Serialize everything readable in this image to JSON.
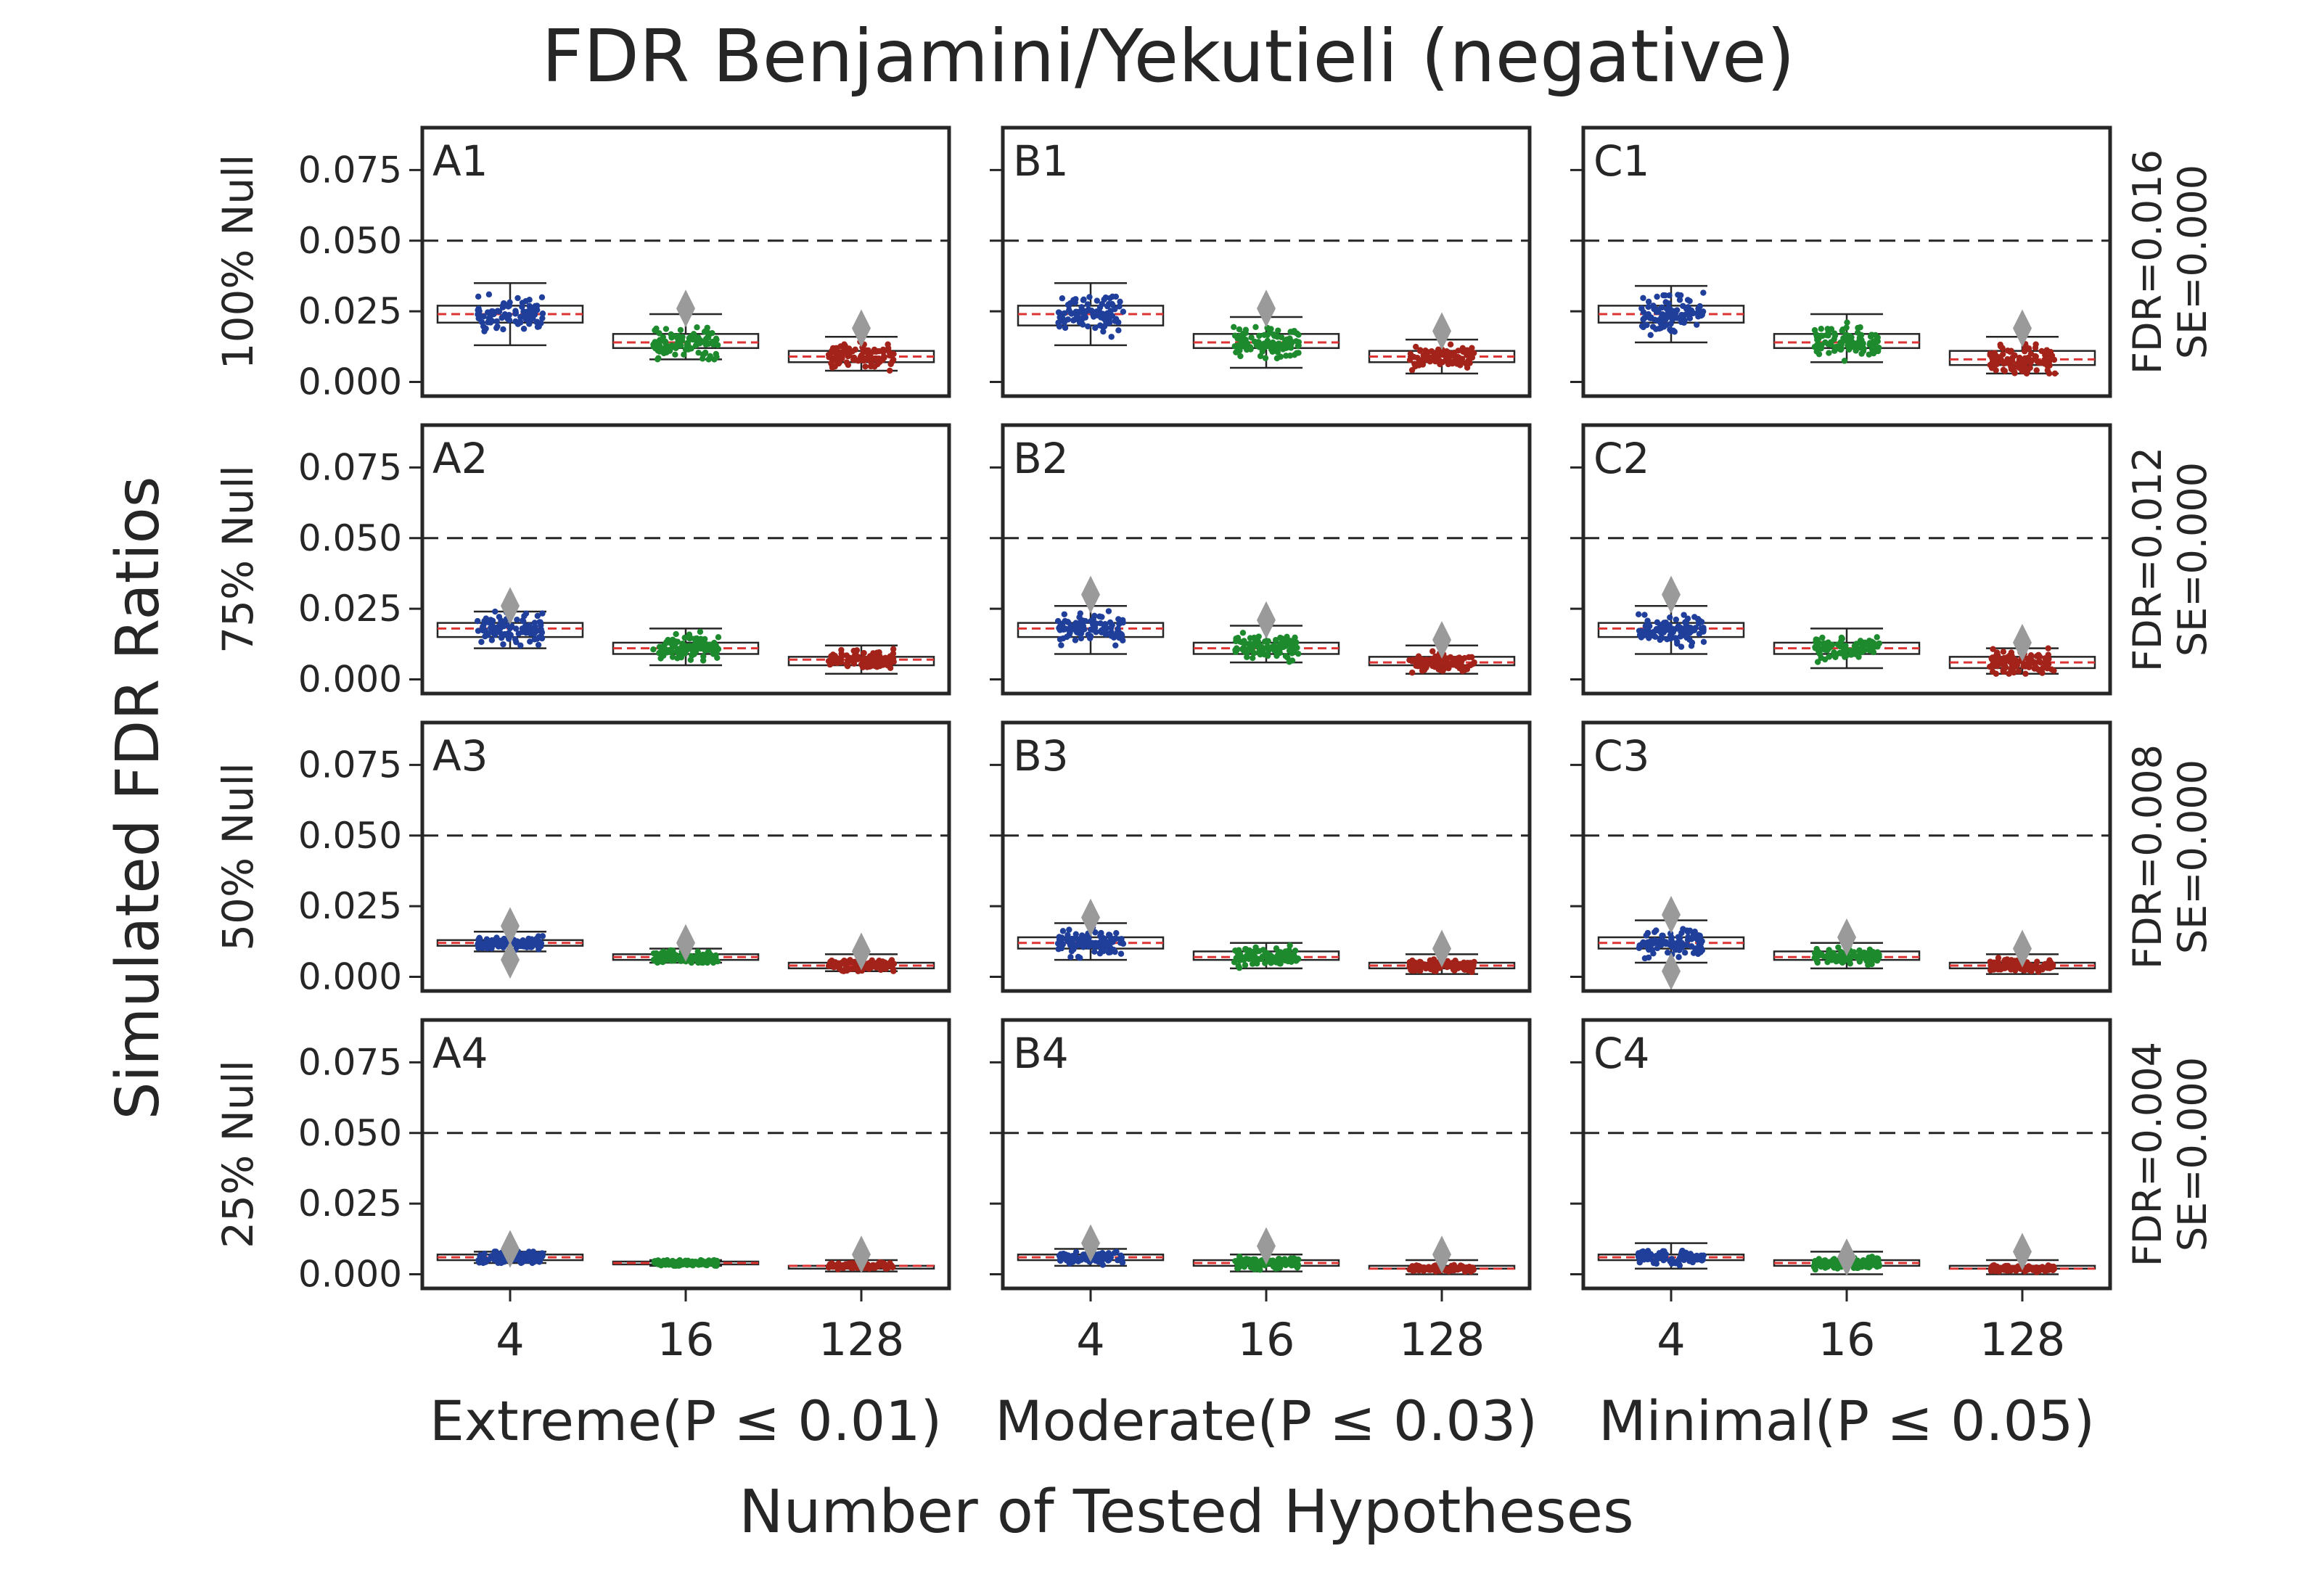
{
  "chart_data": {
    "type": "box",
    "title": "FDR Benjamini/Yekutieli (negative)",
    "ylabel": "Simulated FDR Ratios",
    "xlabel": "Number of Tested Hypotheses",
    "ylim": [
      -0.005,
      0.09
    ],
    "yticks": [
      "0.000",
      "0.025",
      "0.050",
      "0.075"
    ],
    "threshold": 0.05,
    "categories": [
      "4",
      "16",
      "128"
    ],
    "columns": [
      "Extreme(P ≤ 0.01)",
      "Moderate(P ≤ 0.03)",
      "Minimal(P ≤ 0.05)"
    ],
    "rows": [
      "100% Null",
      "75% Null",
      "50% Null",
      "25% Null"
    ],
    "row_stats": [
      {
        "fdr": "FDR=0.016",
        "se": "SE=0.000"
      },
      {
        "fdr": "FDR=0.012",
        "se": "SE=0.000"
      },
      {
        "fdr": "FDR=0.008",
        "se": "SE=0.000"
      },
      {
        "fdr": "FDR=0.004",
        "se": "SE=0.000"
      }
    ],
    "series_colors": [
      "#1f3f9b",
      "#1e8a2e",
      "#a3231a"
    ],
    "panels": [
      {
        "label": "A1",
        "boxes": [
          {
            "min": 0.013,
            "q1": 0.021,
            "median": 0.024,
            "q3": 0.027,
            "max": 0.035,
            "outliers": []
          },
          {
            "min": 0.008,
            "q1": 0.012,
            "median": 0.014,
            "q3": 0.017,
            "max": 0.024,
            "outliers": [
              0.026
            ]
          },
          {
            "min": 0.004,
            "q1": 0.007,
            "median": 0.009,
            "q3": 0.011,
            "max": 0.016,
            "outliers": [
              0.019
            ]
          }
        ]
      },
      {
        "label": "B1",
        "boxes": [
          {
            "min": 0.013,
            "q1": 0.02,
            "median": 0.024,
            "q3": 0.027,
            "max": 0.035,
            "outliers": []
          },
          {
            "min": 0.005,
            "q1": 0.012,
            "median": 0.014,
            "q3": 0.017,
            "max": 0.023,
            "outliers": [
              0.026
            ]
          },
          {
            "min": 0.003,
            "q1": 0.007,
            "median": 0.009,
            "q3": 0.011,
            "max": 0.015,
            "outliers": [
              0.018
            ]
          }
        ]
      },
      {
        "label": "C1",
        "boxes": [
          {
            "min": 0.014,
            "q1": 0.021,
            "median": 0.024,
            "q3": 0.027,
            "max": 0.034,
            "outliers": []
          },
          {
            "min": 0.007,
            "q1": 0.012,
            "median": 0.014,
            "q3": 0.017,
            "max": 0.024,
            "outliers": []
          },
          {
            "min": 0.003,
            "q1": 0.006,
            "median": 0.008,
            "q3": 0.011,
            "max": 0.016,
            "outliers": [
              0.019
            ]
          }
        ]
      },
      {
        "label": "A2",
        "boxes": [
          {
            "min": 0.011,
            "q1": 0.015,
            "median": 0.018,
            "q3": 0.02,
            "max": 0.024,
            "outliers": [
              0.026
            ]
          },
          {
            "min": 0.005,
            "q1": 0.009,
            "median": 0.011,
            "q3": 0.013,
            "max": 0.018,
            "outliers": []
          },
          {
            "min": 0.002,
            "q1": 0.005,
            "median": 0.007,
            "q3": 0.008,
            "max": 0.012,
            "outliers": []
          }
        ]
      },
      {
        "label": "B2",
        "boxes": [
          {
            "min": 0.009,
            "q1": 0.015,
            "median": 0.018,
            "q3": 0.02,
            "max": 0.026,
            "outliers": [
              0.03
            ]
          },
          {
            "min": 0.006,
            "q1": 0.009,
            "median": 0.011,
            "q3": 0.013,
            "max": 0.019,
            "outliers": [
              0.021
            ]
          },
          {
            "min": 0.002,
            "q1": 0.005,
            "median": 0.006,
            "q3": 0.008,
            "max": 0.012,
            "outliers": [
              0.014
            ]
          }
        ]
      },
      {
        "label": "C2",
        "boxes": [
          {
            "min": 0.009,
            "q1": 0.015,
            "median": 0.018,
            "q3": 0.02,
            "max": 0.026,
            "outliers": [
              0.03
            ]
          },
          {
            "min": 0.004,
            "q1": 0.009,
            "median": 0.011,
            "q3": 0.013,
            "max": 0.018,
            "outliers": []
          },
          {
            "min": 0.002,
            "q1": 0.004,
            "median": 0.006,
            "q3": 0.008,
            "max": 0.011,
            "outliers": [
              0.013
            ]
          }
        ]
      },
      {
        "label": "A3",
        "boxes": [
          {
            "min": 0.009,
            "q1": 0.011,
            "median": 0.012,
            "q3": 0.013,
            "max": 0.016,
            "outliers": [
              0.018,
              0.006
            ]
          },
          {
            "min": 0.005,
            "q1": 0.006,
            "median": 0.007,
            "q3": 0.008,
            "max": 0.01,
            "outliers": [
              0.012
            ]
          },
          {
            "min": 0.002,
            "q1": 0.003,
            "median": 0.004,
            "q3": 0.005,
            "max": 0.008,
            "outliers": [
              0.009
            ]
          }
        ]
      },
      {
        "label": "B3",
        "boxes": [
          {
            "min": 0.006,
            "q1": 0.01,
            "median": 0.012,
            "q3": 0.014,
            "max": 0.019,
            "outliers": [
              0.021
            ]
          },
          {
            "min": 0.003,
            "q1": 0.006,
            "median": 0.007,
            "q3": 0.009,
            "max": 0.012,
            "outliers": []
          },
          {
            "min": 0.001,
            "q1": 0.003,
            "median": 0.004,
            "q3": 0.005,
            "max": 0.008,
            "outliers": [
              0.01
            ]
          }
        ]
      },
      {
        "label": "C3",
        "boxes": [
          {
            "min": 0.005,
            "q1": 0.01,
            "median": 0.012,
            "q3": 0.014,
            "max": 0.02,
            "outliers": [
              0.022,
              0.002
            ]
          },
          {
            "min": 0.003,
            "q1": 0.006,
            "median": 0.007,
            "q3": 0.009,
            "max": 0.012,
            "outliers": [
              0.014
            ]
          },
          {
            "min": 0.001,
            "q1": 0.003,
            "median": 0.004,
            "q3": 0.005,
            "max": 0.008,
            "outliers": [
              0.01
            ]
          }
        ]
      },
      {
        "label": "A4",
        "boxes": [
          {
            "min": 0.004,
            "q1": 0.005,
            "median": 0.006,
            "q3": 0.007,
            "max": 0.008,
            "outliers": [
              0.009
            ]
          },
          {
            "min": 0.003,
            "q1": 0.0035,
            "median": 0.004,
            "q3": 0.0045,
            "max": 0.005,
            "outliers": []
          },
          {
            "min": 0.001,
            "q1": 0.002,
            "median": 0.003,
            "q3": 0.003,
            "max": 0.005,
            "outliers": [
              0.007
            ]
          }
        ]
      },
      {
        "label": "B4",
        "boxes": [
          {
            "min": 0.003,
            "q1": 0.005,
            "median": 0.006,
            "q3": 0.007,
            "max": 0.009,
            "outliers": [
              0.011
            ]
          },
          {
            "min": 0.001,
            "q1": 0.003,
            "median": 0.004,
            "q3": 0.005,
            "max": 0.007,
            "outliers": [
              0.01
            ]
          },
          {
            "min": 0.0,
            "q1": 0.002,
            "median": 0.002,
            "q3": 0.003,
            "max": 0.005,
            "outliers": [
              0.007
            ]
          }
        ]
      },
      {
        "label": "C4",
        "boxes": [
          {
            "min": 0.002,
            "q1": 0.005,
            "median": 0.006,
            "q3": 0.007,
            "max": 0.011,
            "outliers": []
          },
          {
            "min": 0.0,
            "q1": 0.003,
            "median": 0.004,
            "q3": 0.005,
            "max": 0.008,
            "outliers": [
              0.006
            ]
          },
          {
            "min": 0.0,
            "q1": 0.002,
            "median": 0.002,
            "q3": 0.003,
            "max": 0.005,
            "outliers": [
              0.008
            ]
          }
        ]
      }
    ]
  }
}
